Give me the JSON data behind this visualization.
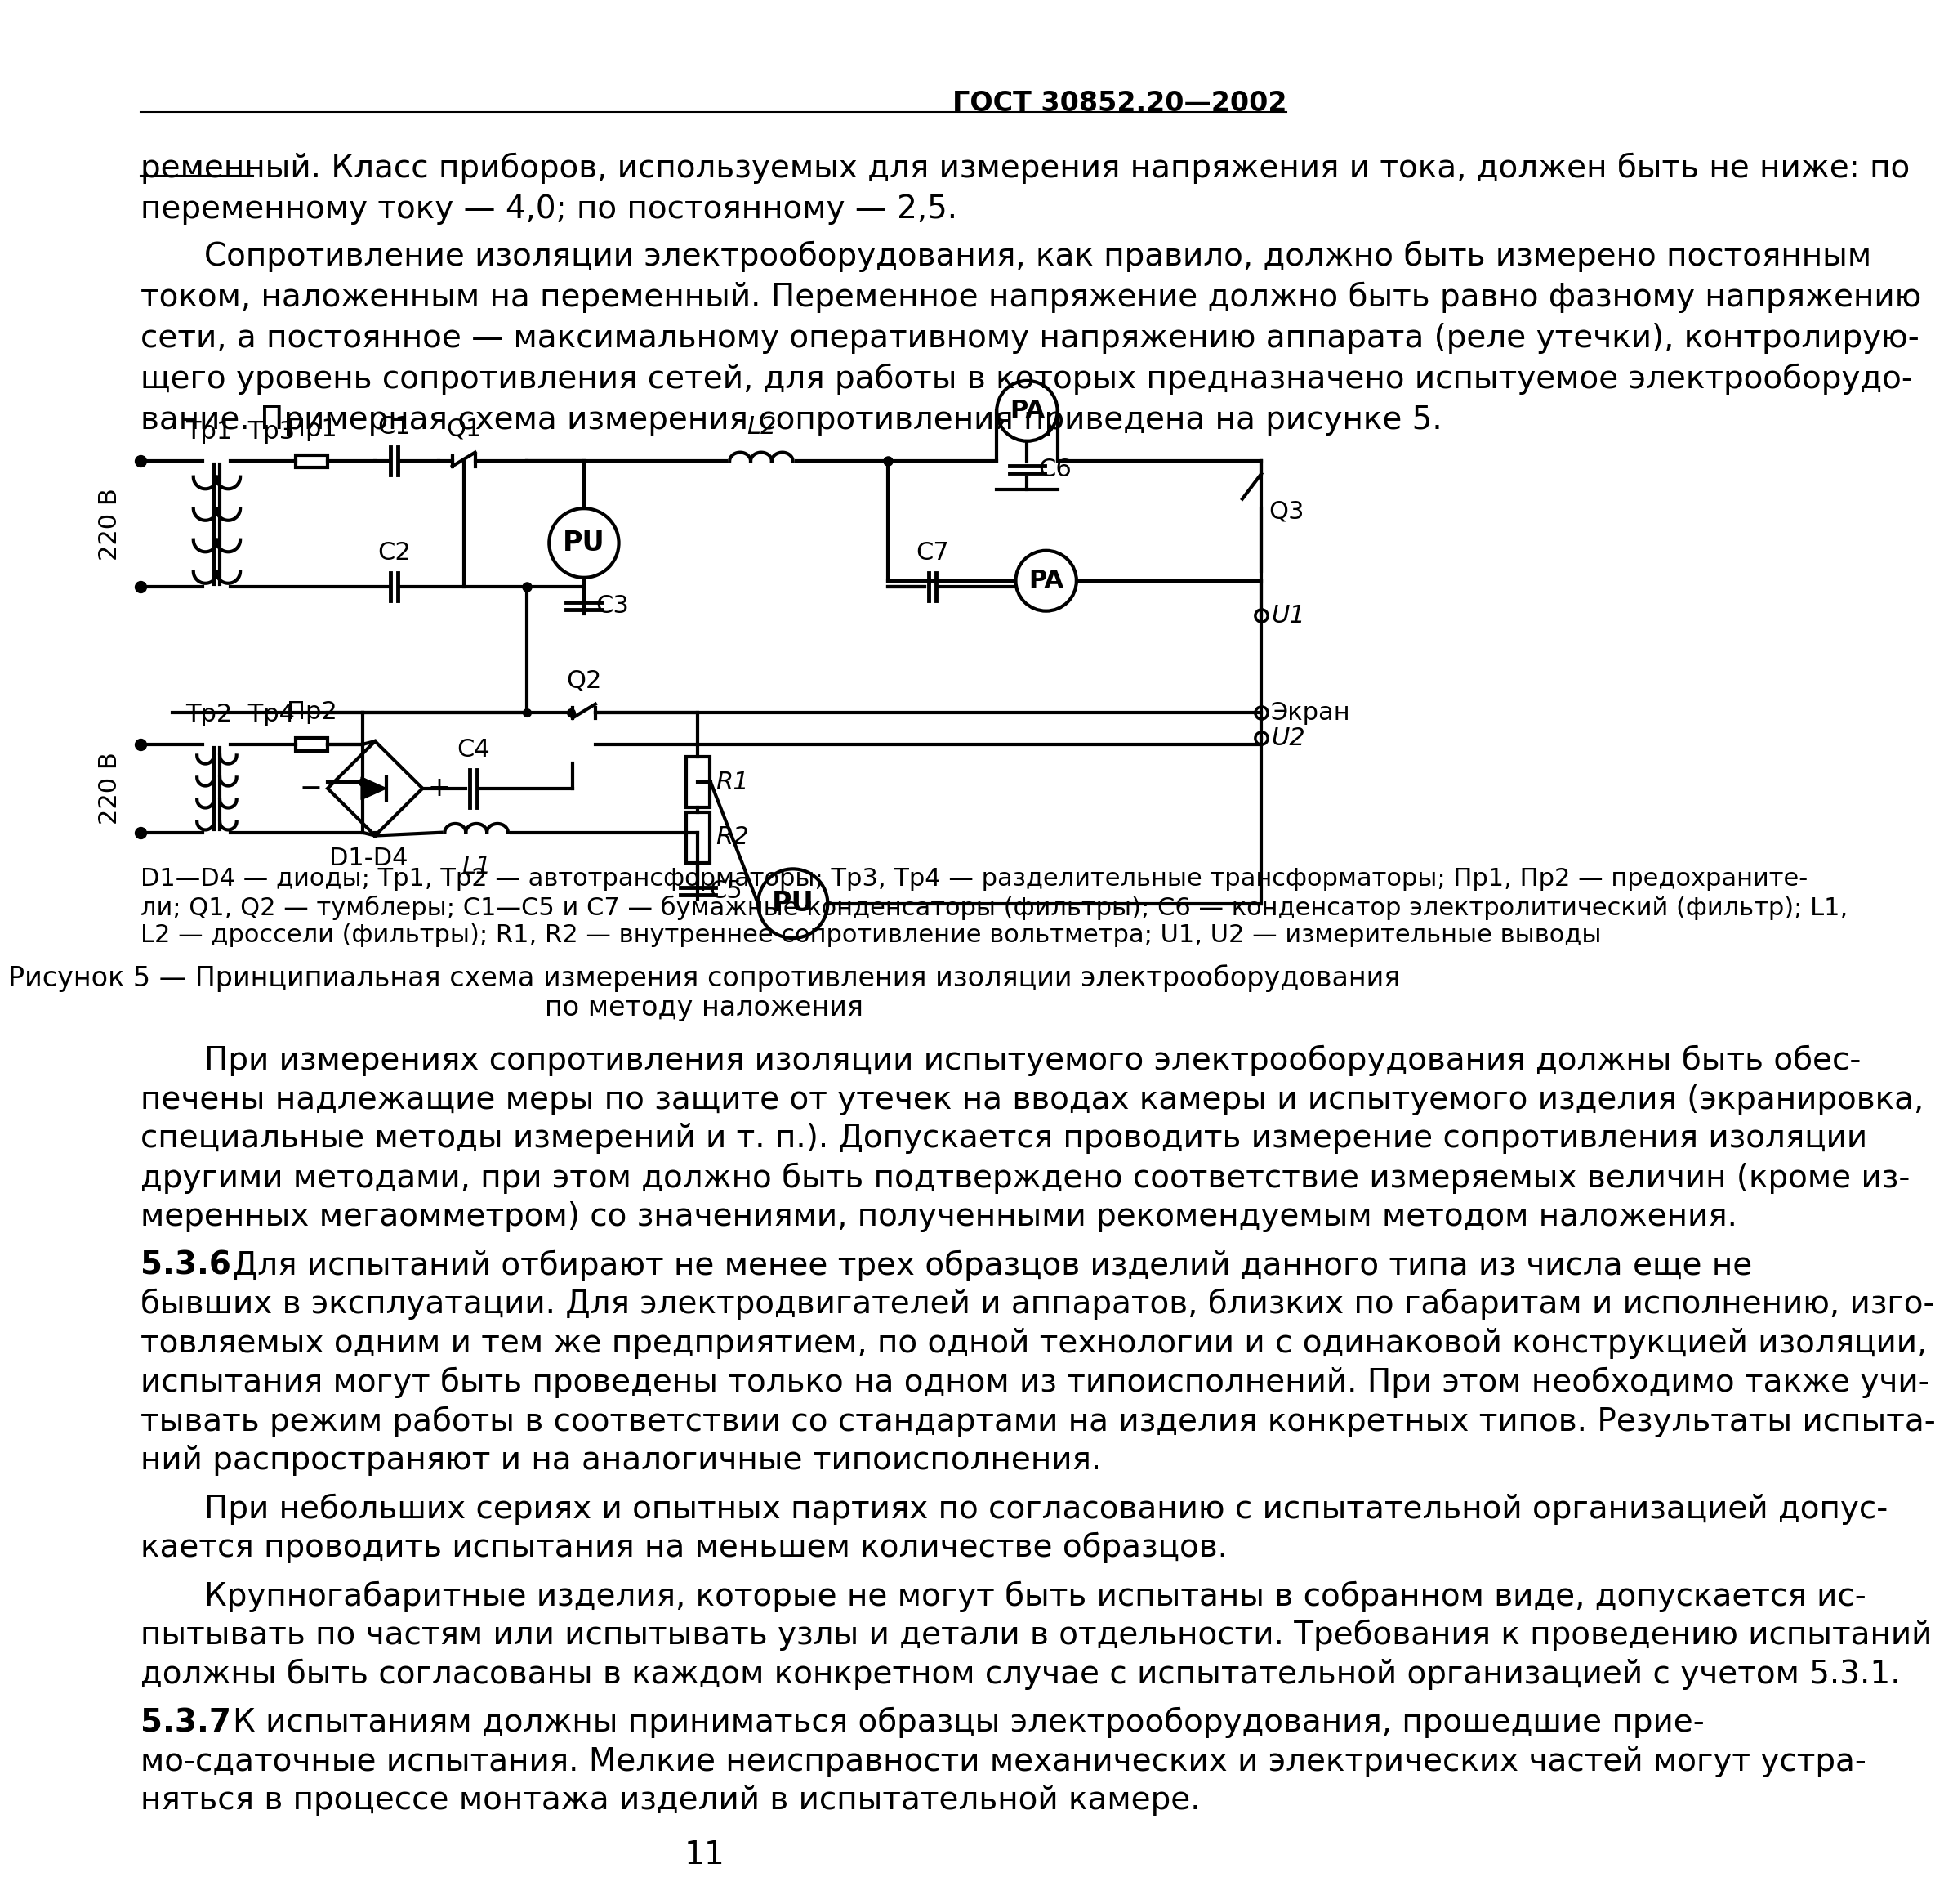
{
  "page_number": "11",
  "header_text": "ГОСТ 30852.20—2002",
  "bg_color": "#ffffff",
  "text_color": "#000000",
  "line1": "ременный. Класс приборов, используемых для измерения напряжения и тока, должен быть не ниже: по",
  "line2": "переменному току — 4,0; по постоянному — 2,5.",
  "p2l1": "Сопротивление изоляции электрооборудования, как правило, должно быть измерено постоянным",
  "p2l2": "током, наложенным на переменный. Переменное напряжение должно быть равно фазному напряжению",
  "p2l3": "сети, а постоянное — максимальному оперативному напряжению аппарата (реле утечки), контролирую-",
  "p2l4": "щего уровень сопротивления сетей, для работы в которых предназначено испытуемое электрооборудо-",
  "p2l5": "вание. Примерная схема измерения сопротивления приведена на рисунке 5.",
  "cap1": "D1—D4 — диоды; Тр1, Тр2 — автотрансформаторы; Тр3, Тр4 — разделительные трансформаторы; Пр1, Пр2 — предохраните-",
  "cap2": "ли; Q1, Q2 — тумблеры; С1—С5 и С7 — бумажные конденсаторы (фильтры); С6 — конденсатор электролитический (фильтр); L1,",
  "cap3": "L2 — дроссели (фильтры); R1, R2 — внутреннее сопротивление вольтметра; U1, U2 — измерительные выводы",
  "figcap1": "Рисунок 5 — Принципиальная схема измерения сопротивления изоляции электрооборудования",
  "figcap2": "по методу наложения",
  "b1l1": "При измерениях сопротивления изоляции испытуемого электрооборудования должны быть обес-",
  "b1l2": "печены надлежащие меры по защите от утечек на вводах камеры и испытуемого изделия (экранировка,",
  "b1l3": "специальные методы измерений и т. п.). Допускается проводить измерение сопротивления изоляции",
  "b1l4": "другими методами, при этом должно быть подтверждено соответствие измеряемых величин (кроме из-",
  "b1l5": "меренных мегаомметром) со значениями, полученными рекомендуемым методом наложения.",
  "s36": "5.3.6",
  "b2l1": "Для испытаний отбирают не менее трех образцов изделий данного типа из числа еще не",
  "b2l2": "бывших в эксплуатации. Для электродвигателей и аппаратов, близких по габаритам и исполнению, изго-",
  "b2l3": "товляемых одним и тем же предприятием, по одной технологии и с одинаковой конструкцией изоляции,",
  "b2l4": "испытания могут быть проведены только на одном из типоисполнений. При этом необходимо также учи-",
  "b2l5": "тывать режим работы в соответствии со стандартами на изделия конкретных типов. Результаты испыта-",
  "b2l6": "ний распространяют и на аналогичные типоисполнения.",
  "b3l1": "При небольших сериях и опытных партиях по согласованию с испытательной организацией допус-",
  "b3l2": "кается проводить испытания на меньшем количестве образцов.",
  "b4l1": "Крупногабаритные изделия, которые не могут быть испытаны в собранном виде, допускается ис-",
  "b4l2": "пытывать по частям или испытывать узлы и детали в отдельности. Требования к проведению испытаний",
  "b4l3": "должны быть согласованы в каждом конкретном случае с испытательной организацией с учетом 5.3.1.",
  "s37": "5.3.7",
  "b5l1": "К испытаниям должны приниматься образцы электрооборудования, прошедшие прие-",
  "b5l2": "мо-сдаточные испытания. Мелкие неисправности механических и электрических частей могут устра-",
  "b5l3": "няться в процессе монтажа изделий в испытательной камере."
}
